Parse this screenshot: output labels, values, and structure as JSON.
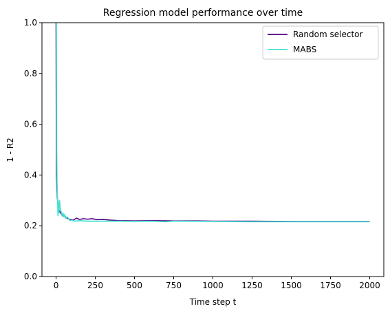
{
  "chart_data": {
    "type": "line",
    "title": "Regression model performance over time",
    "xlabel": "Time step t",
    "ylabel": "1 - R2",
    "xlim": [
      -90,
      2090
    ],
    "ylim": [
      0.0,
      1.0
    ],
    "xticks": [
      0,
      250,
      500,
      750,
      1000,
      1250,
      1500,
      1750,
      2000
    ],
    "yticks": [
      0.0,
      0.2,
      0.4,
      0.6,
      0.8,
      1.0
    ],
    "xtick_labels": [
      "0",
      "250",
      "500",
      "750",
      "1000",
      "1250",
      "1500",
      "1750",
      "2000"
    ],
    "ytick_labels": [
      "0.0",
      "0.2",
      "0.4",
      "0.6",
      "0.8",
      "1.0"
    ],
    "legend_position": "top-right",
    "series": [
      {
        "name": "Random selector",
        "color": "#4b0082",
        "x": [
          0,
          2,
          5,
          8,
          12,
          16,
          20,
          25,
          30,
          40,
          50,
          60,
          75,
          90,
          110,
          130,
          150,
          175,
          200,
          230,
          260,
          300,
          350,
          400,
          500,
          600,
          750,
          900,
          1000,
          1250,
          1500,
          1750,
          2000
        ],
        "y": [
          1.0,
          0.4,
          0.35,
          0.31,
          0.29,
          0.27,
          0.26,
          0.255,
          0.25,
          0.24,
          0.238,
          0.235,
          0.228,
          0.225,
          0.222,
          0.23,
          0.225,
          0.228,
          0.226,
          0.228,
          0.224,
          0.225,
          0.222,
          0.22,
          0.219,
          0.22,
          0.219,
          0.219,
          0.218,
          0.218,
          0.217,
          0.217,
          0.217
        ]
      },
      {
        "name": "MABS",
        "color": "#40e0d0",
        "x": [
          0,
          2,
          4,
          6,
          8,
          10,
          12,
          15,
          18,
          22,
          26,
          30,
          35,
          40,
          45,
          50,
          55,
          60,
          70,
          80,
          90,
          100,
          120,
          150,
          200,
          250,
          300,
          400,
          500,
          600,
          700,
          750,
          1000,
          1250,
          1500,
          1750,
          2000
        ],
        "y": [
          1.0,
          1.0,
          0.5,
          0.38,
          0.33,
          0.3,
          0.24,
          0.29,
          0.25,
          0.3,
          0.27,
          0.26,
          0.25,
          0.24,
          0.25,
          0.235,
          0.245,
          0.23,
          0.235,
          0.228,
          0.22,
          0.222,
          0.218,
          0.22,
          0.218,
          0.218,
          0.218,
          0.218,
          0.217,
          0.218,
          0.216,
          0.218,
          0.217,
          0.216,
          0.216,
          0.216,
          0.216
        ]
      }
    ]
  }
}
